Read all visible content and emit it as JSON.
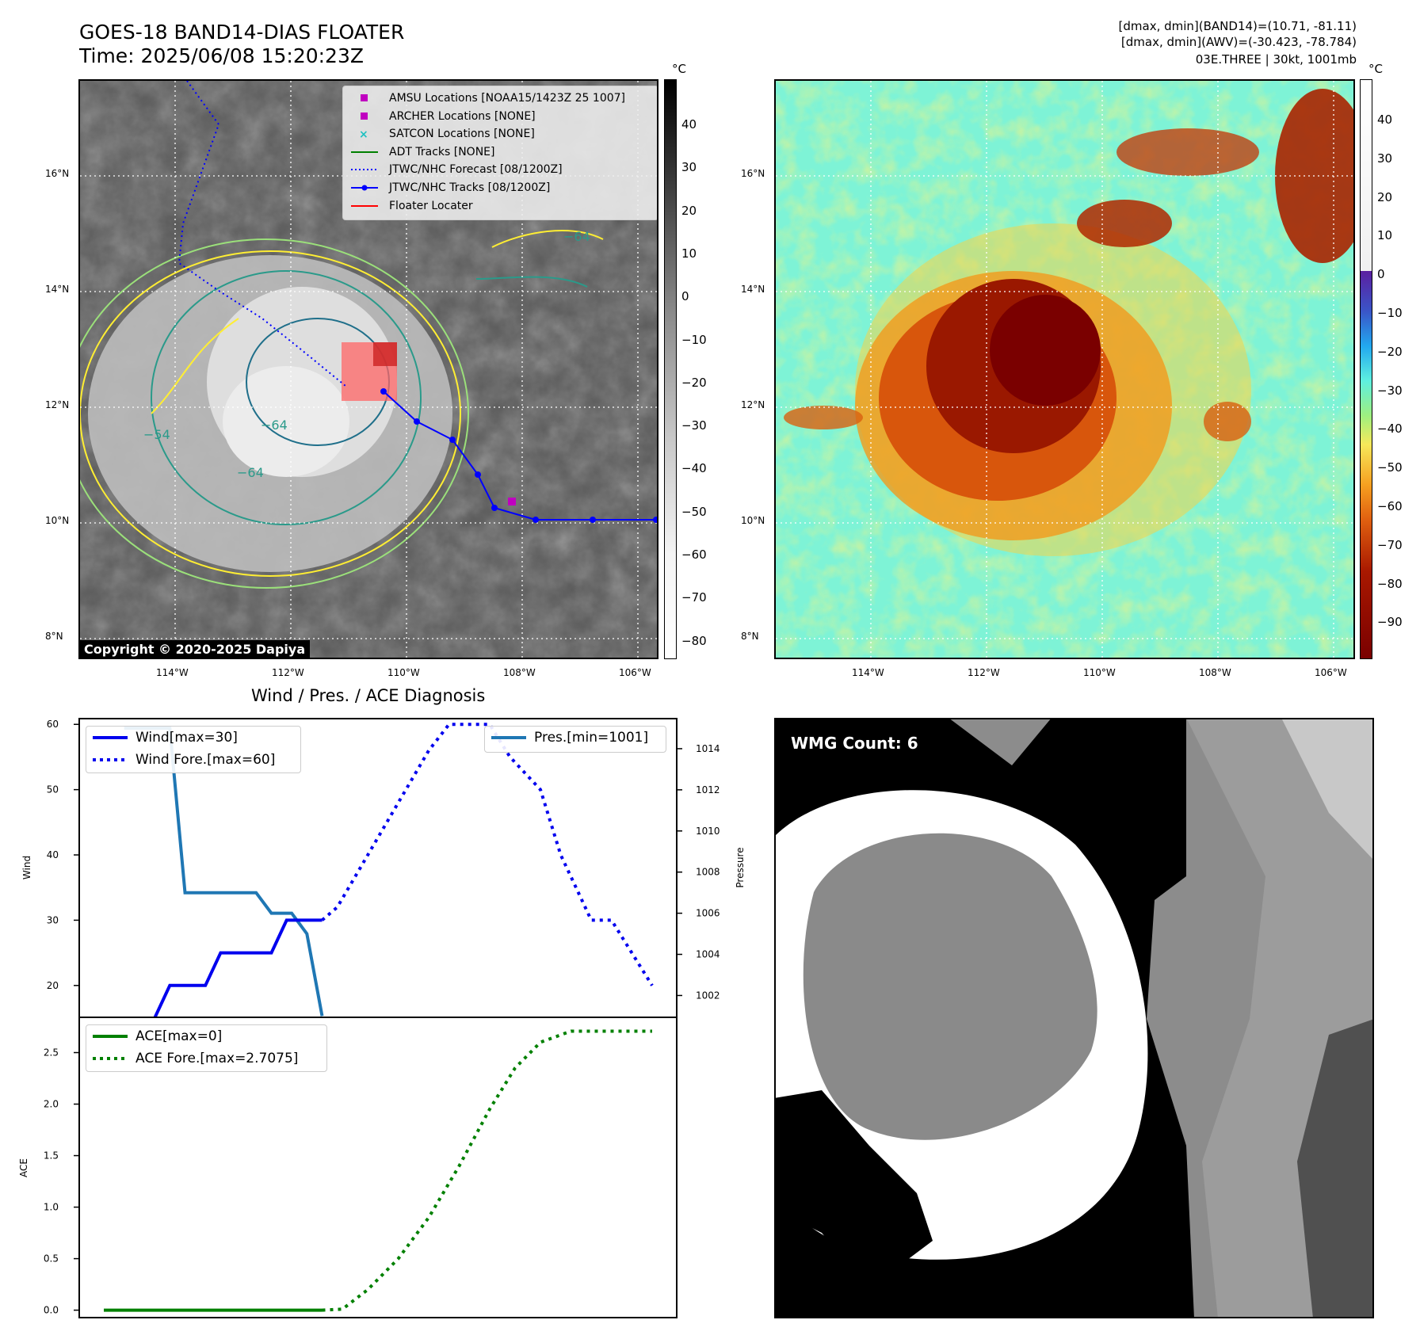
{
  "header": {
    "title": "GOES-18 BAND14-DIAS FLOATER",
    "time": "Time: 2025/06/08 15:20:23Z",
    "info_line1": "[dmax, dmin](BAND14)=(10.71, -81.11)",
    "info_line2": "[dmax, dmin](AWV)=(-30.423, -78.784)",
    "info_line3": "03E.THREE | 30kt, 1001mb"
  },
  "ir_panel": {
    "unit": "°C",
    "colorbar_ticks": [
      "40",
      "30",
      "20",
      "10",
      "0",
      "−10",
      "−20",
      "−30",
      "−40",
      "−50",
      "−60",
      "−70",
      "−80"
    ],
    "lat_labels": [
      "16°N",
      "14°N",
      "12°N",
      "10°N",
      "8°N"
    ],
    "lon_labels": [
      "114°W",
      "112°W",
      "110°W",
      "108°W",
      "106°W"
    ],
    "contour_labels": [
      "−64",
      "−54",
      "−64",
      "−64"
    ],
    "copyright": "Copyright © 2020-2025 Dapiya",
    "legend": [
      {
        "label": "AMSU Locations [NOAA15/1423Z 25 1007]",
        "color": "#c000c0",
        "symbol": "square"
      },
      {
        "label": "ARCHER Locations [NONE]",
        "color": "#c000c0",
        "symbol": "square"
      },
      {
        "label": "SATCON Locations [NONE]",
        "color": "#20c0c0",
        "symbol": "x"
      },
      {
        "label": "ADT Tracks [NONE]",
        "color": "#008000",
        "symbol": "line"
      },
      {
        "label": "JTWC/NHC Forecast [08/1200Z]",
        "color": "#0000ff",
        "symbol": "dotted"
      },
      {
        "label": "JTWC/NHC Tracks [08/1200Z]",
        "color": "#0000ff",
        "symbol": "line-dot"
      },
      {
        "label": "Floater Locater",
        "color": "#ff0000",
        "symbol": "line"
      }
    ]
  },
  "awv_panel": {
    "unit": "°C",
    "colorbar_ticks": [
      "40",
      "30",
      "20",
      "10",
      "0",
      "−10",
      "−20",
      "−30",
      "−40",
      "−50",
      "−60",
      "−70",
      "−80",
      "−90"
    ],
    "lat_labels": [
      "16°N",
      "14°N",
      "12°N",
      "10°N",
      "8°N"
    ],
    "lon_labels": [
      "114°W",
      "112°W",
      "110°W",
      "108°W",
      "106°W"
    ]
  },
  "diagnosis": {
    "title": "Wind / Pres. / ACE Diagnosis",
    "wind_ylabel": "Wind",
    "pres_ylabel": "Pressure",
    "ace_ylabel": "ACE",
    "wind_legend": [
      "Wind[max=30]",
      "Wind Fore.[max=60]"
    ],
    "pres_legend": "Pres.[min=1001]",
    "ace_legend": [
      "ACE[max=0]",
      "ACE Fore.[max=2.7075]"
    ]
  },
  "wmg_panel": {
    "label": "WMG Count: 6"
  },
  "colors": {
    "wind": "#0000ee",
    "pressure": "#1f77b4",
    "ace": "#008000",
    "track": "#0000ff",
    "floater": "#ff0000"
  },
  "chart_data": [
    {
      "type": "line",
      "title": "Wind / Pres. / ACE Diagnosis",
      "ylabel": "Wind",
      "ylim": [
        15,
        61
      ],
      "yticks": [
        20,
        30,
        40,
        50,
        60
      ],
      "series": [
        {
          "name": "Wind[max=30]",
          "style": "solid",
          "x": [
            0,
            1,
            1.3,
            2,
            2.3,
            3.3,
            3.6,
            4.3
          ],
          "values": [
            15,
            15,
            20,
            20,
            25,
            25,
            30,
            30
          ]
        },
        {
          "name": "Wind Fore.[max=60]",
          "style": "dotted",
          "x": [
            4.3,
            4.6,
            5.2,
            5.8,
            6.4,
            6.8,
            7.2,
            7.6,
            8.0,
            8.6,
            9.0,
            9.3,
            9.6,
            10.0,
            10.4,
            10.8
          ],
          "values": [
            30,
            32,
            40,
            48,
            56,
            60,
            60,
            60,
            55,
            50,
            40,
            35,
            30,
            30,
            25,
            20
          ]
        }
      ],
      "secondary_axis": {
        "ylabel": "Pressure",
        "ylim": [
          1000.9,
          1015.5
        ],
        "yticks": [
          1002,
          1004,
          1006,
          1008,
          1010,
          1012,
          1014
        ],
        "series": [
          {
            "name": "Pres.[min=1001]",
            "x": [
              0.4,
              1.3,
              1.6,
              3.0,
              3.3,
              3.7,
              4.0,
              4.3
            ],
            "values": [
              1015,
              1015,
              1007,
              1007,
              1006,
              1006,
              1005,
              1001
            ]
          }
        ]
      }
    },
    {
      "type": "line",
      "ylabel": "ACE",
      "ylim": [
        -0.08,
        2.85
      ],
      "yticks": [
        0.0,
        0.5,
        1.0,
        1.5,
        2.0,
        2.5
      ],
      "series": [
        {
          "name": "ACE[max=0]",
          "style": "solid",
          "x": [
            0,
            4.3
          ],
          "values": [
            0,
            0
          ]
        },
        {
          "name": "ACE Fore.[max=2.7075]",
          "style": "dotted",
          "x": [
            4.3,
            4.7,
            5.2,
            5.8,
            6.4,
            7.0,
            7.6,
            8.1,
            8.6,
            9.2,
            10.0,
            10.8
          ],
          "values": [
            0,
            0.01,
            0.2,
            0.5,
            0.9,
            1.4,
            1.95,
            2.35,
            2.6,
            2.7075,
            2.7075,
            2.7075
          ]
        }
      ]
    }
  ]
}
